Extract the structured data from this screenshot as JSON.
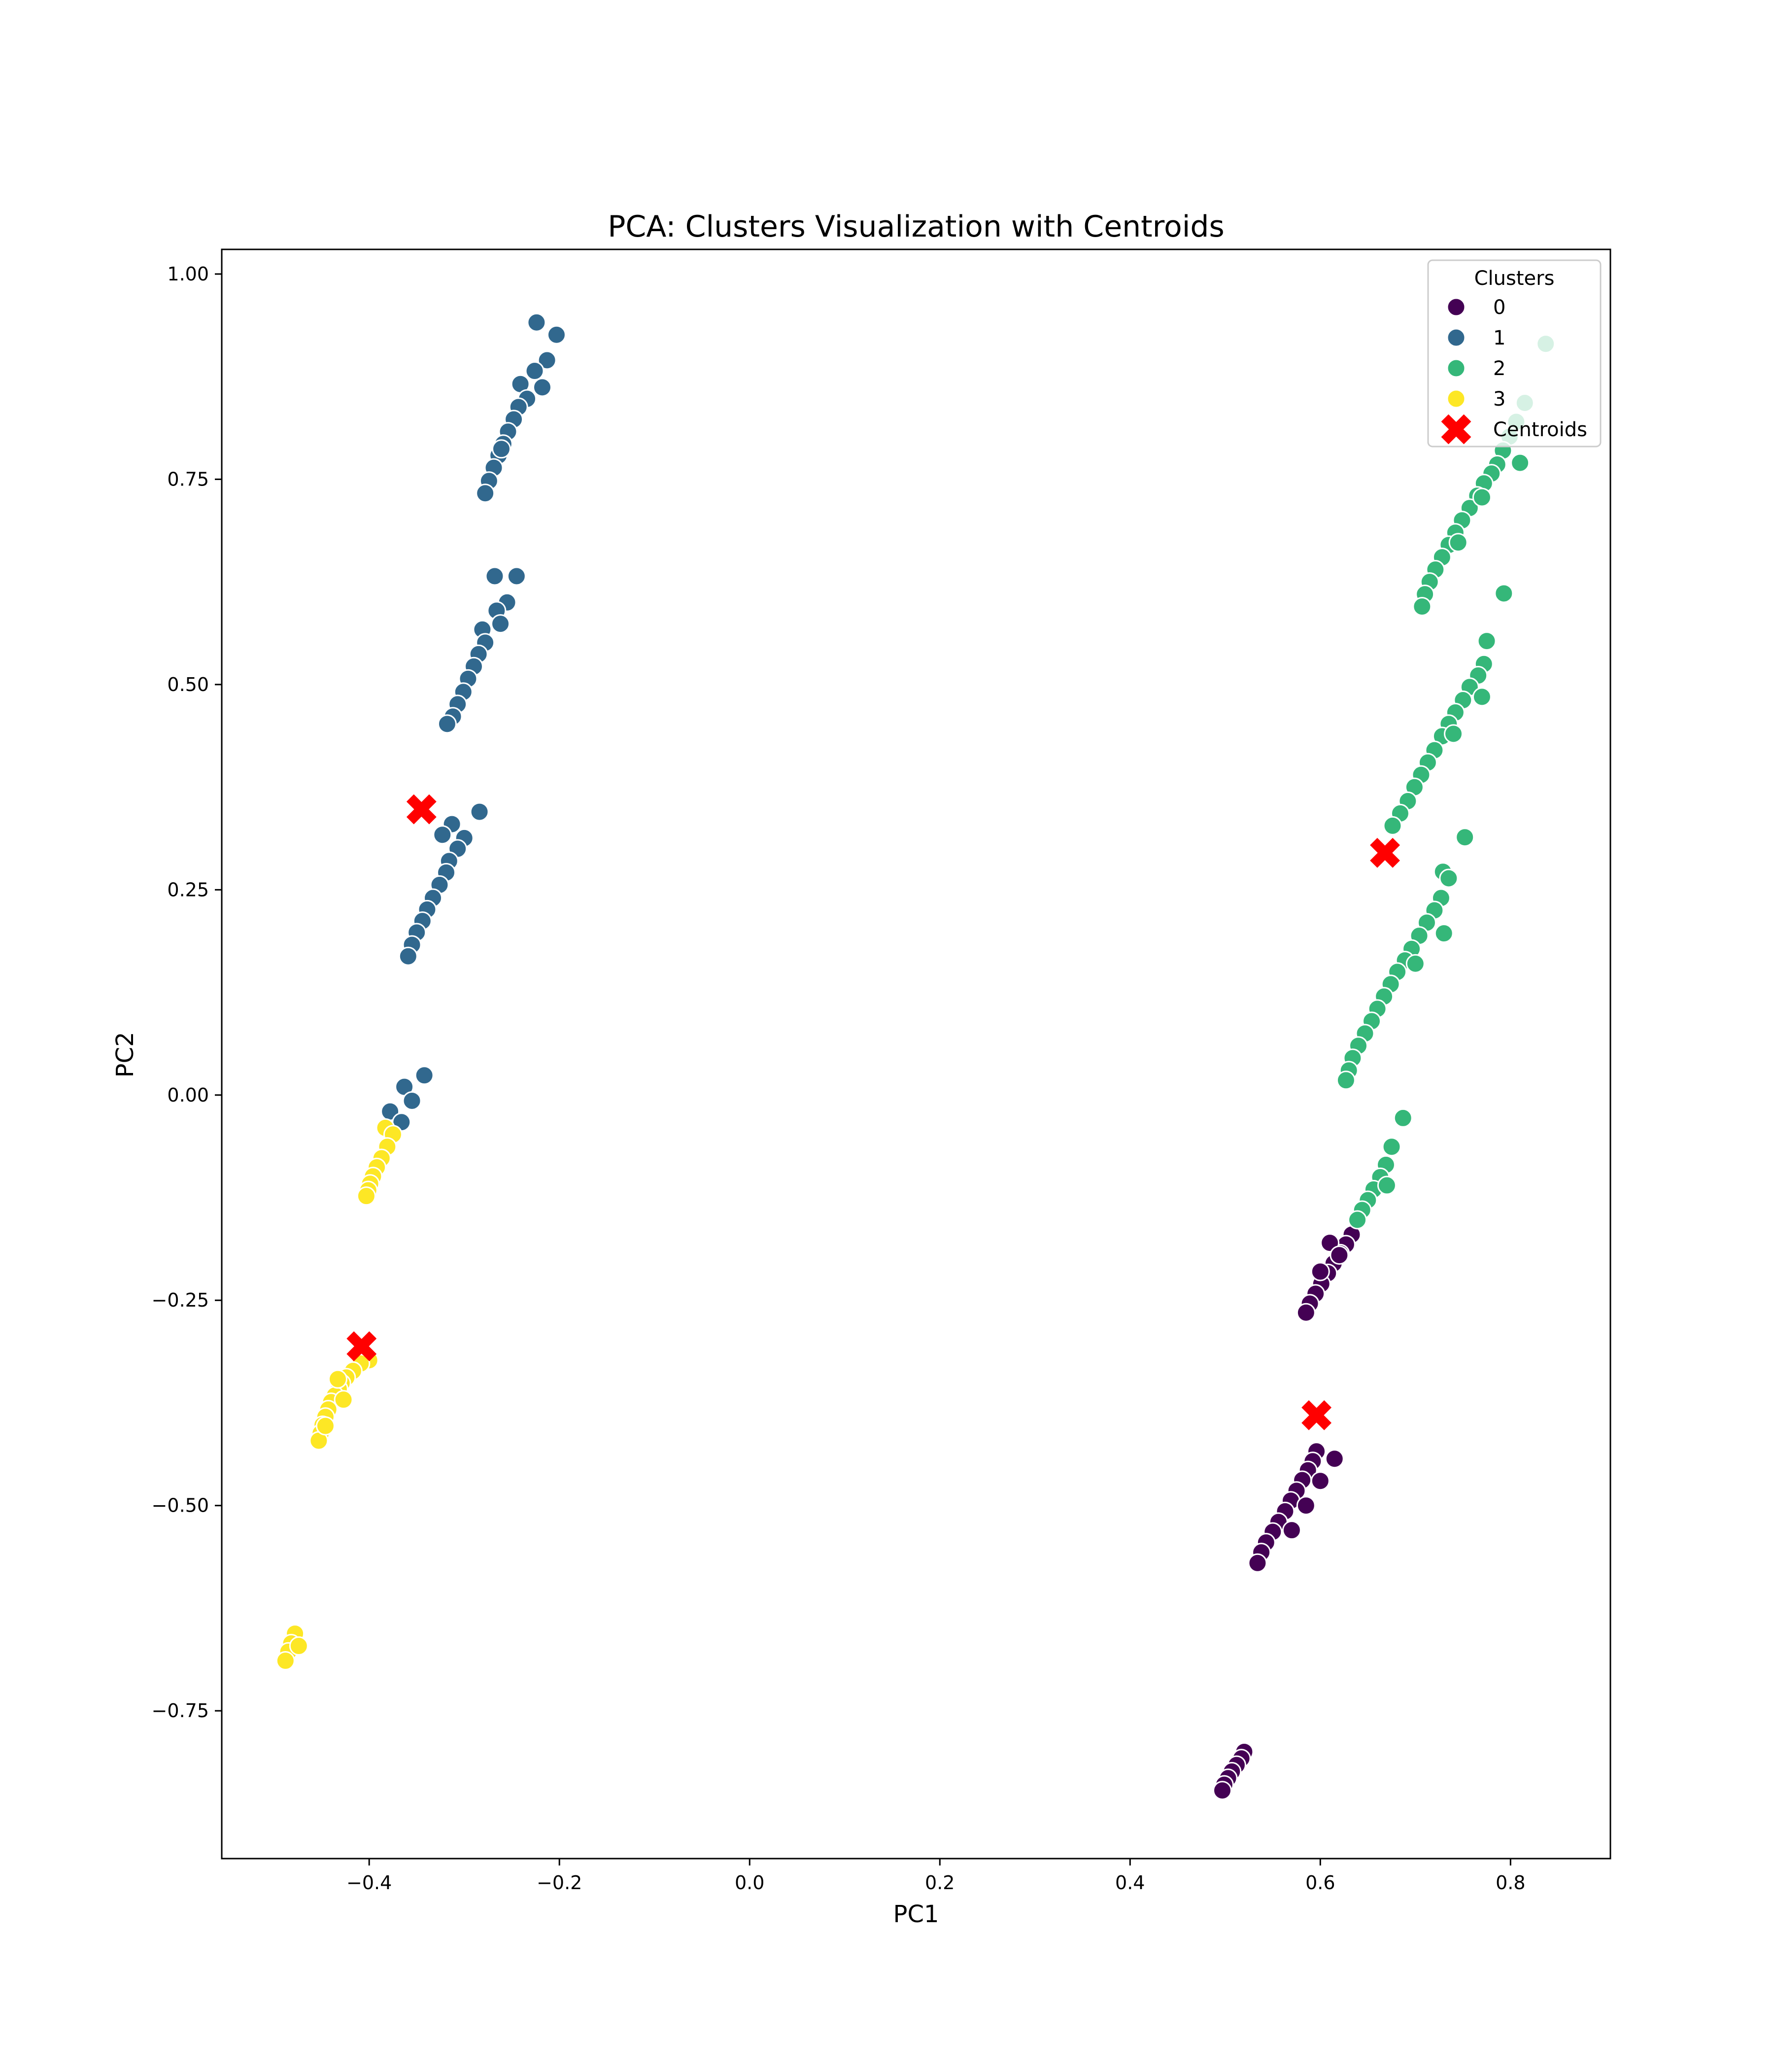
{
  "chart_data": {
    "type": "scatter",
    "title": "PCA: Clusters Visualization with Centroids",
    "xlabel": "PC1",
    "ylabel": "PC2",
    "xlim": [
      -0.555,
      0.905
    ],
    "ylim": [
      -0.93,
      1.03
    ],
    "x_ticks": [
      {
        "value": -0.4,
        "label": "−0.4"
      },
      {
        "value": -0.2,
        "label": "−0.2"
      },
      {
        "value": 0.0,
        "label": "0.0"
      },
      {
        "value": 0.2,
        "label": "0.2"
      },
      {
        "value": 0.4,
        "label": "0.4"
      },
      {
        "value": 0.6,
        "label": "0.6"
      },
      {
        "value": 0.8,
        "label": "0.8"
      }
    ],
    "y_ticks": [
      {
        "value": -0.75,
        "label": "−0.75"
      },
      {
        "value": -0.5,
        "label": "−0.50"
      },
      {
        "value": -0.25,
        "label": "−0.25"
      },
      {
        "value": 0.0,
        "label": "0.00"
      },
      {
        "value": 0.25,
        "label": "0.25"
      },
      {
        "value": 0.5,
        "label": "0.50"
      },
      {
        "value": 0.75,
        "label": "0.75"
      },
      {
        "value": 1.0,
        "label": "1.00"
      }
    ],
    "grid": false,
    "legend": {
      "title": "Clusters",
      "placement": "upper-right",
      "entries": [
        {
          "label": "0",
          "color": "#440154",
          "marker": "circle"
        },
        {
          "label": "1",
          "color": "#31688e",
          "marker": "circle"
        },
        {
          "label": "2",
          "color": "#35b779",
          "marker": "circle"
        },
        {
          "label": "3",
          "color": "#fde725",
          "marker": "circle"
        },
        {
          "label": "Centroids",
          "color": "#ff0000",
          "marker": "x"
        }
      ]
    },
    "series": [
      {
        "name": "0",
        "color": "#440154",
        "points": [
          [
            0.52,
            -0.8
          ],
          [
            0.517,
            -0.808
          ],
          [
            0.512,
            -0.816
          ],
          [
            0.507,
            -0.824
          ],
          [
            0.503,
            -0.832
          ],
          [
            0.499,
            -0.84
          ],
          [
            0.497,
            -0.847
          ],
          [
            0.596,
            -0.434
          ],
          [
            0.592,
            -0.446
          ],
          [
            0.587,
            -0.457
          ],
          [
            0.581,
            -0.469
          ],
          [
            0.575,
            -0.482
          ],
          [
            0.569,
            -0.494
          ],
          [
            0.563,
            -0.507
          ],
          [
            0.556,
            -0.52
          ],
          [
            0.55,
            -0.532
          ],
          [
            0.543,
            -0.545
          ],
          [
            0.538,
            -0.557
          ],
          [
            0.534,
            -0.57
          ],
          [
            0.615,
            -0.443
          ],
          [
            0.6,
            -0.47
          ],
          [
            0.585,
            -0.5
          ],
          [
            0.57,
            -0.53
          ],
          [
            0.633,
            -0.17
          ],
          [
            0.627,
            -0.182
          ],
          [
            0.621,
            -0.193
          ],
          [
            0.614,
            -0.205
          ],
          [
            0.608,
            -0.217
          ],
          [
            0.601,
            -0.23
          ],
          [
            0.595,
            -0.242
          ],
          [
            0.589,
            -0.254
          ],
          [
            0.585,
            -0.265
          ],
          [
            0.61,
            -0.18
          ],
          [
            0.62,
            -0.195
          ],
          [
            0.6,
            -0.215
          ]
        ]
      },
      {
        "name": "1",
        "color": "#31688e",
        "points": [
          [
            -0.224,
            0.941
          ],
          [
            -0.203,
            0.926
          ],
          [
            -0.213,
            0.895
          ],
          [
            -0.226,
            0.882
          ],
          [
            -0.241,
            0.866
          ],
          [
            -0.218,
            0.862
          ],
          [
            -0.234,
            0.848
          ],
          [
            -0.243,
            0.838
          ],
          [
            -0.248,
            0.823
          ],
          [
            -0.254,
            0.808
          ],
          [
            -0.259,
            0.793
          ],
          [
            -0.264,
            0.779
          ],
          [
            -0.269,
            0.764
          ],
          [
            -0.274,
            0.748
          ],
          [
            -0.278,
            0.733
          ],
          [
            -0.261,
            0.787
          ],
          [
            -0.268,
            0.632
          ],
          [
            -0.245,
            0.632
          ],
          [
            -0.255,
            0.6
          ],
          [
            -0.266,
            0.59
          ],
          [
            -0.262,
            0.574
          ],
          [
            -0.281,
            0.567
          ],
          [
            -0.278,
            0.551
          ],
          [
            -0.285,
            0.537
          ],
          [
            -0.29,
            0.522
          ],
          [
            -0.296,
            0.507
          ],
          [
            -0.301,
            0.491
          ],
          [
            -0.307,
            0.476
          ],
          [
            -0.312,
            0.461
          ],
          [
            -0.318,
            0.452
          ],
          [
            -0.284,
            0.345
          ],
          [
            -0.313,
            0.33
          ],
          [
            -0.3,
            0.313
          ],
          [
            -0.323,
            0.317
          ],
          [
            -0.307,
            0.3
          ],
          [
            -0.316,
            0.285
          ],
          [
            -0.319,
            0.271
          ],
          [
            -0.326,
            0.256
          ],
          [
            -0.333,
            0.24
          ],
          [
            -0.339,
            0.226
          ],
          [
            -0.344,
            0.212
          ],
          [
            -0.35,
            0.198
          ],
          [
            -0.355,
            0.183
          ],
          [
            -0.359,
            0.169
          ],
          [
            -0.342,
            0.024
          ],
          [
            -0.363,
            0.01
          ],
          [
            -0.355,
            -0.007
          ],
          [
            -0.378,
            -0.02
          ],
          [
            -0.366,
            -0.033
          ]
        ]
      },
      {
        "name": "2",
        "color": "#35b779",
        "points": [
          [
            0.837,
            0.915
          ],
          [
            0.815,
            0.843
          ],
          [
            0.806,
            0.82
          ],
          [
            0.799,
            0.802
          ],
          [
            0.792,
            0.785
          ],
          [
            0.786,
            0.768
          ],
          [
            0.81,
            0.77
          ],
          [
            0.78,
            0.757
          ],
          [
            0.772,
            0.745
          ],
          [
            0.765,
            0.73
          ],
          [
            0.757,
            0.715
          ],
          [
            0.749,
            0.7
          ],
          [
            0.742,
            0.685
          ],
          [
            0.735,
            0.67
          ],
          [
            0.728,
            0.655
          ],
          [
            0.721,
            0.64
          ],
          [
            0.715,
            0.625
          ],
          [
            0.71,
            0.61
          ],
          [
            0.707,
            0.595
          ],
          [
            0.77,
            0.728
          ],
          [
            0.745,
            0.673
          ],
          [
            0.793,
            0.611
          ],
          [
            0.775,
            0.553
          ],
          [
            0.772,
            0.525
          ],
          [
            0.766,
            0.511
          ],
          [
            0.757,
            0.497
          ],
          [
            0.75,
            0.481
          ],
          [
            0.742,
            0.466
          ],
          [
            0.735,
            0.452
          ],
          [
            0.728,
            0.437
          ],
          [
            0.72,
            0.42
          ],
          [
            0.713,
            0.405
          ],
          [
            0.706,
            0.39
          ],
          [
            0.699,
            0.375
          ],
          [
            0.692,
            0.358
          ],
          [
            0.684,
            0.343
          ],
          [
            0.676,
            0.328
          ],
          [
            0.77,
            0.485
          ],
          [
            0.74,
            0.44
          ],
          [
            0.752,
            0.314
          ],
          [
            0.729,
            0.272
          ],
          [
            0.735,
            0.264
          ],
          [
            0.727,
            0.24
          ],
          [
            0.72,
            0.225
          ],
          [
            0.712,
            0.21
          ],
          [
            0.704,
            0.194
          ],
          [
            0.696,
            0.178
          ],
          [
            0.689,
            0.164
          ],
          [
            0.681,
            0.15
          ],
          [
            0.674,
            0.135
          ],
          [
            0.667,
            0.12
          ],
          [
            0.66,
            0.105
          ],
          [
            0.654,
            0.09
          ],
          [
            0.647,
            0.075
          ],
          [
            0.64,
            0.06
          ],
          [
            0.634,
            0.045
          ],
          [
            0.63,
            0.03
          ],
          [
            0.627,
            0.018
          ],
          [
            0.73,
            0.197
          ],
          [
            0.7,
            0.16
          ],
          [
            0.687,
            -0.028
          ],
          [
            0.675,
            -0.063
          ],
          [
            0.669,
            -0.085
          ],
          [
            0.663,
            -0.1
          ],
          [
            0.656,
            -0.115
          ],
          [
            0.65,
            -0.128
          ],
          [
            0.644,
            -0.14
          ],
          [
            0.639,
            -0.152
          ],
          [
            0.67,
            -0.11
          ]
        ]
      },
      {
        "name": "3",
        "color": "#fde725",
        "points": [
          [
            -0.383,
            -0.04
          ],
          [
            -0.375,
            -0.048
          ],
          [
            -0.381,
            -0.063
          ],
          [
            -0.387,
            -0.077
          ],
          [
            -0.392,
            -0.088
          ],
          [
            -0.396,
            -0.099
          ],
          [
            -0.399,
            -0.108
          ],
          [
            -0.401,
            -0.116
          ],
          [
            -0.403,
            -0.123
          ],
          [
            -0.4,
            -0.323
          ],
          [
            -0.409,
            -0.327
          ],
          [
            -0.417,
            -0.336
          ],
          [
            -0.424,
            -0.344
          ],
          [
            -0.429,
            -0.351
          ],
          [
            -0.432,
            -0.358
          ],
          [
            -0.436,
            -0.366
          ],
          [
            -0.44,
            -0.374
          ],
          [
            -0.443,
            -0.383
          ],
          [
            -0.446,
            -0.392
          ],
          [
            -0.449,
            -0.402
          ],
          [
            -0.451,
            -0.412
          ],
          [
            -0.453,
            -0.421
          ],
          [
            -0.433,
            -0.346
          ],
          [
            -0.427,
            -0.371
          ],
          [
            -0.446,
            -0.403
          ],
          [
            -0.478,
            -0.656
          ],
          [
            -0.482,
            -0.668
          ],
          [
            -0.485,
            -0.678
          ],
          [
            -0.488,
            -0.689
          ],
          [
            -0.474,
            -0.671
          ]
        ]
      }
    ],
    "centroids": {
      "name": "Centroids",
      "color": "#ff0000",
      "points": [
        [
          -0.345,
          0.348
        ],
        [
          0.668,
          0.295
        ],
        [
          -0.408,
          -0.306
        ],
        [
          0.596,
          -0.39
        ]
      ]
    }
  }
}
